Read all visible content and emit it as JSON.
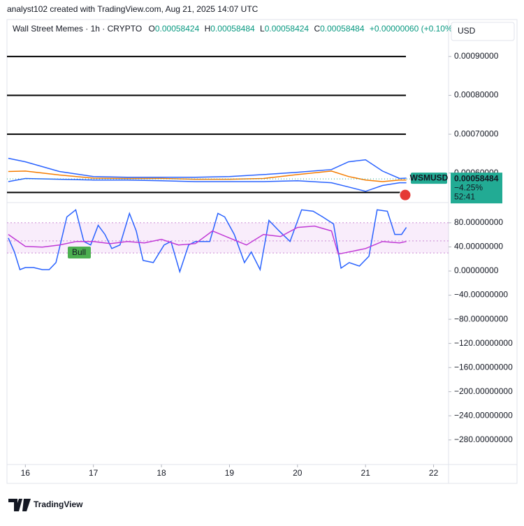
{
  "header": {
    "byline": "analyst102 created with TradingView.com, Aug 21, 2025 14:07 UTC",
    "symbol": "Wall Street Memes · 1h · CRYPTO",
    "ohlc": [
      {
        "label": "O",
        "value": "0.00058424"
      },
      {
        "label": "H",
        "value": "0.00058484"
      },
      {
        "label": "L",
        "value": "0.00058424"
      },
      {
        "label": "C",
        "value": "0.00058484"
      }
    ],
    "change": "+0.00000060 (+0.10%)",
    "currency": "USD"
  },
  "chart_data": [
    {
      "type": "line",
      "xlim": [
        15.73,
        22.22
      ],
      "ylim": [
        0.000524,
        0.000995
      ],
      "yticks": [
        {
          "value": 0.0009,
          "label": "0.00090000"
        },
        {
          "value": 0.0008,
          "label": "0.00080000"
        },
        {
          "value": 0.0007,
          "label": "0.00070000"
        },
        {
          "value": 0.0006,
          "label": "0.00060000"
        }
      ],
      "hlines": [
        0.0009,
        0.0008,
        0.0007,
        0.00055
      ],
      "x": [
        15.75,
        16,
        16.5,
        17,
        17.5,
        18,
        18.5,
        19,
        19.5,
        20,
        20.5,
        20.75,
        21,
        21.25,
        21.5,
        21.6
      ],
      "series": [
        {
          "color": "#2962ff",
          "values": [
            0.000638,
            0.000629,
            0.000604,
            0.000591,
            0.000589,
            0.000589,
            0.000589,
            0.000591,
            0.000596,
            0.000602,
            0.000609,
            0.000629,
            0.000634,
            0.000605,
            0.000586,
            0.000587
          ]
        },
        {
          "color": "#2962ff",
          "values": [
            0.000578,
            0.000586,
            0.000584,
            0.000582,
            0.000582,
            0.00058,
            0.000578,
            0.000578,
            0.000578,
            0.00058,
            0.000575,
            0.000564,
            0.000553,
            0.000568,
            0.000575,
            0.000575
          ]
        },
        {
          "color": "#f57c00",
          "values": [
            0.000604,
            0.000605,
            0.000595,
            0.000587,
            0.000586,
            0.000586,
            0.000584,
            0.000584,
            0.000586,
            0.000596,
            0.000605,
            0.000591,
            0.000582,
            0.000578,
            0.000582,
            0.000582
          ]
        }
      ],
      "last_value": 0.00058484,
      "last_symbol": "WSMUSD",
      "last_change": "−4.25%",
      "countdown": "52:41",
      "tag_color": "#22ab94"
    },
    {
      "type": "line",
      "xlim": [
        15.73,
        22.22
      ],
      "ylim": [
        -320.8,
        113.5
      ],
      "xticks": [
        16,
        17,
        18,
        19,
        20,
        21,
        22
      ],
      "yticks": [
        {
          "value": 80,
          "label": "80.00000000"
        },
        {
          "value": 40,
          "label": "40.00000000"
        },
        {
          "value": 0,
          "label": "0.00000000"
        },
        {
          "value": -40,
          "label": "−40.00000000"
        },
        {
          "value": -80,
          "label": "−80.00000000"
        },
        {
          "value": -120,
          "label": "−120.00000000"
        },
        {
          "value": -160,
          "label": "−160.00000000"
        },
        {
          "value": -200,
          "label": "−200.00000000"
        },
        {
          "value": -240,
          "label": "−240.00000000"
        },
        {
          "value": -280,
          "label": "−280.00000000"
        }
      ],
      "levels": [
        80,
        50,
        30
      ],
      "series": [
        {
          "color": "#2962ff",
          "x": [
            15.75,
            15.84,
            15.92,
            16,
            16.12,
            16.25,
            16.35,
            16.45,
            16.61,
            16.74,
            16.86,
            16.96,
            17.07,
            17.17,
            17.27,
            17.39,
            17.53,
            17.63,
            17.73,
            17.88,
            18.04,
            18.14,
            18.27,
            18.4,
            18.5,
            18.71,
            18.83,
            18.93,
            19.07,
            19.22,
            19.32,
            19.45,
            19.58,
            19.73,
            19.89,
            20.06,
            20.23,
            20.37,
            20.53,
            20.64,
            20.76,
            20.91,
            21.05,
            21.17,
            21.32,
            21.43,
            21.53,
            21.6
          ],
          "values": [
            54.8,
            31.5,
            2.3,
            5.8,
            5.8,
            2.3,
            2.3,
            14,
            89.8,
            101.5,
            49,
            43.2,
            75.8,
            60.7,
            37.3,
            43.2,
            95.6,
            66.5,
            17.5,
            14,
            43.2,
            49,
            -1.2,
            43.2,
            49,
            49,
            95.6,
            89.8,
            60.7,
            14,
            31.5,
            2.3,
            84,
            66.5,
            49,
            101.5,
            99.1,
            89.8,
            78.1,
            4.7,
            14,
            8.2,
            24.5,
            101.5,
            99.1,
            60.7,
            60.7,
            72.3
          ]
        },
        {
          "color": "#c039d6",
          "x": [
            15.75,
            16,
            16.25,
            16.5,
            16.75,
            17,
            17.25,
            17.5,
            17.75,
            18,
            18.25,
            18.5,
            18.75,
            19,
            19.25,
            19.5,
            19.75,
            20,
            20.25,
            20.5,
            20.6,
            20.75,
            21,
            21.25,
            21.5,
            21.6
          ],
          "values": [
            60.7,
            40.8,
            39.7,
            43.2,
            49,
            49,
            45.5,
            49,
            46.7,
            52.5,
            43.2,
            45.5,
            66.5,
            54.8,
            43.2,
            60.7,
            57.2,
            72.3,
            74.6,
            66.5,
            28,
            31.5,
            37.3,
            49,
            46.7,
            49
          ]
        }
      ],
      "annotation": "Bull"
    }
  ],
  "footer": {
    "brand": "TradingView"
  }
}
